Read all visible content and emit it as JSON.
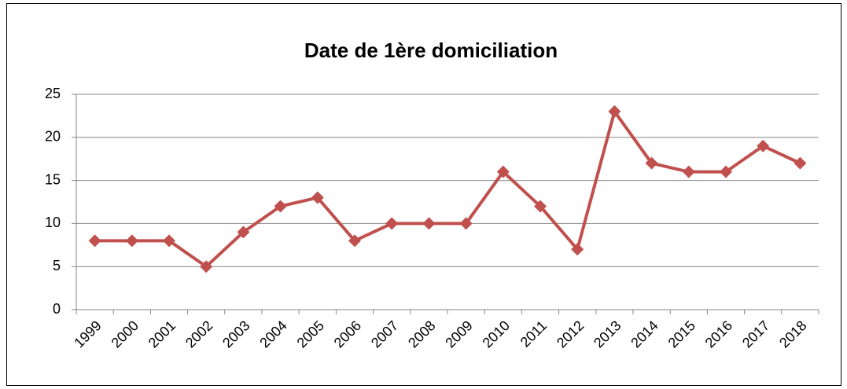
{
  "chart_data": {
    "type": "line",
    "title": "Date de 1ère domiciliation",
    "categories": [
      "1999",
      "2000",
      "2001",
      "2002",
      "2003",
      "2004",
      "2005",
      "2006",
      "2007",
      "2008",
      "2009",
      "2010",
      "2011",
      "2012",
      "2013",
      "2014",
      "2015",
      "2016",
      "2017",
      "2018"
    ],
    "values": [
      8,
      8,
      8,
      5,
      9,
      12,
      13,
      8,
      10,
      10,
      10,
      16,
      12,
      7,
      23,
      17,
      16,
      16,
      19,
      17
    ],
    "color": "#c0504d",
    "ylim": [
      0,
      25
    ],
    "yticks": [
      0,
      5,
      10,
      15,
      20,
      25
    ],
    "grid": true
  }
}
